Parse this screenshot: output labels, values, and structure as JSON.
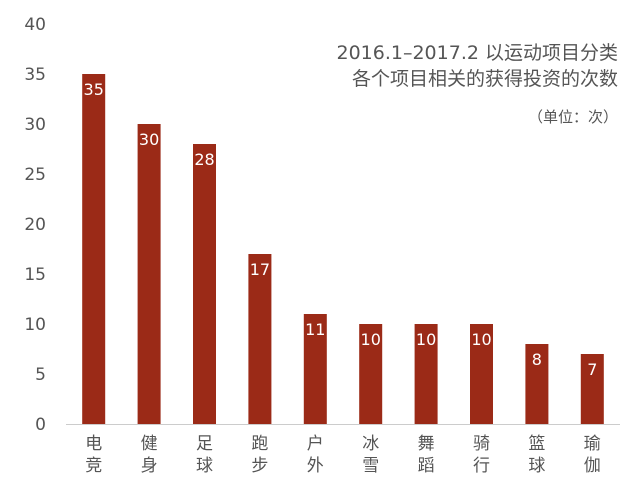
{
  "chart_data": {
    "type": "bar",
    "title_lines": [
      "2016.1–2017.2 以运动项目分类",
      "各个项目相关的获得投资的次数"
    ],
    "unit_label": "（单位：次）",
    "categories": [
      "电竞",
      "健身",
      "足球",
      "跑步",
      "户外",
      "冰雪",
      "舞蹈",
      "骑行",
      "篮球",
      "瑜伽"
    ],
    "values": [
      35,
      30,
      28,
      17,
      11,
      10,
      10,
      10,
      8,
      7
    ],
    "data_labels": [
      "35",
      "30",
      "28",
      "17",
      "11",
      "10",
      "10",
      "10",
      "8",
      "7"
    ],
    "y_ticks": [
      "0",
      "5",
      "10",
      "15",
      "20",
      "25",
      "30",
      "35",
      "40"
    ],
    "ylim": [
      0,
      40
    ],
    "grid": false,
    "colors": {
      "bar": "#9B2A17",
      "bar_label": "#ffffff",
      "axis_text": "#555555",
      "axis_line": "#cccccc"
    }
  }
}
